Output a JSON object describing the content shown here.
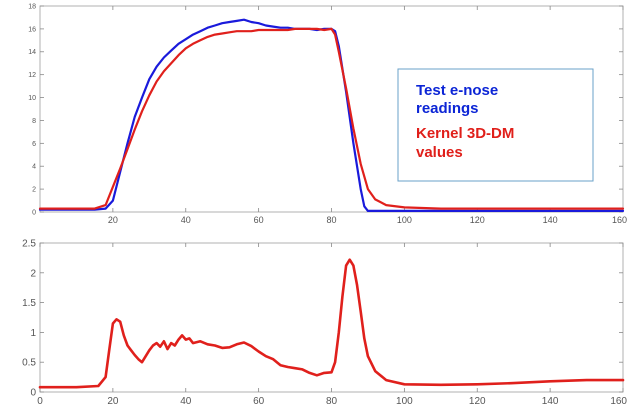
{
  "chart_data": [
    {
      "type": "line",
      "title": "",
      "xlabel": "",
      "ylabel": "",
      "xlim": [
        0,
        160
      ],
      "ylim": [
        0,
        18
      ],
      "xticks": [
        20,
        40,
        60,
        80,
        100,
        120,
        140,
        160
      ],
      "xtick_labels": [
        "20",
        "40",
        "60",
        "80",
        "100",
        "120",
        "140",
        "160"
      ],
      "yticks": [
        0,
        2,
        4,
        6,
        8,
        10,
        12,
        14,
        16,
        18
      ],
      "ytick_labels": [
        "0",
        "2",
        "4",
        "6",
        "8",
        "10",
        "12",
        "14",
        "16",
        "18"
      ],
      "grid": false,
      "legend": {
        "placement": "inside-right",
        "entries": [
          "Test e-nose\nreadings",
          "Kernel 3D-DM\nvalues"
        ]
      },
      "series": [
        {
          "name": "Test e-nose readings",
          "color": "#1a1adb",
          "x": [
            0,
            15,
            18,
            20,
            22,
            24,
            26,
            28,
            30,
            32,
            34,
            36,
            38,
            40,
            42,
            44,
            46,
            48,
            50,
            52,
            54,
            56,
            58,
            60,
            62,
            64,
            66,
            68,
            70,
            72,
            74,
            76,
            78,
            80,
            81,
            82,
            84,
            86,
            88,
            89,
            90,
            95,
            100,
            120,
            140,
            160
          ],
          "y": [
            0.2,
            0.2,
            0.3,
            1.0,
            3.5,
            6.0,
            8.3,
            10.0,
            11.6,
            12.7,
            13.5,
            14.1,
            14.7,
            15.1,
            15.5,
            15.8,
            16.1,
            16.3,
            16.5,
            16.6,
            16.7,
            16.8,
            16.6,
            16.5,
            16.3,
            16.2,
            16.1,
            16.1,
            16.0,
            16.0,
            16.0,
            15.9,
            16.0,
            16.0,
            15.8,
            14.5,
            10.5,
            6.0,
            2.0,
            0.5,
            0.1,
            0.1,
            0.1,
            0.1,
            0.1,
            0.1
          ]
        },
        {
          "name": "Kernel 3D-DM values",
          "color": "#e0201c",
          "x": [
            0,
            15,
            18,
            20,
            22,
            24,
            26,
            28,
            30,
            32,
            34,
            36,
            38,
            40,
            42,
            44,
            46,
            48,
            50,
            52,
            54,
            56,
            58,
            60,
            62,
            64,
            66,
            68,
            70,
            72,
            74,
            76,
            78,
            80,
            81,
            82,
            84,
            86,
            88,
            90,
            92,
            95,
            100,
            110,
            120,
            140,
            160
          ],
          "y": [
            0.3,
            0.3,
            0.6,
            2.2,
            3.8,
            5.5,
            7.2,
            8.8,
            10.2,
            11.4,
            12.3,
            13.0,
            13.7,
            14.3,
            14.7,
            15.0,
            15.3,
            15.5,
            15.6,
            15.7,
            15.8,
            15.8,
            15.8,
            15.9,
            15.9,
            15.9,
            15.9,
            15.9,
            16.0,
            16.0,
            16.0,
            16.0,
            15.9,
            16.0,
            15.5,
            14.0,
            10.8,
            7.3,
            4.2,
            2.0,
            1.1,
            0.6,
            0.4,
            0.3,
            0.3,
            0.3,
            0.3
          ]
        }
      ]
    },
    {
      "type": "line",
      "title": "",
      "xlabel": "",
      "ylabel": "",
      "xlim": [
        0,
        160
      ],
      "ylim": [
        0,
        2.5
      ],
      "xticks": [
        0,
        20,
        40,
        60,
        80,
        100,
        120,
        140,
        160
      ],
      "xtick_labels": [
        "0",
        "20",
        "40",
        "60",
        "80",
        "100",
        "120",
        "140",
        "160"
      ],
      "yticks": [
        0,
        0.5,
        1,
        1.5,
        2,
        2.5
      ],
      "ytick_labels": [
        "0",
        "0.5",
        "1",
        "1.5",
        "2",
        "2.5"
      ],
      "grid": false,
      "series": [
        {
          "color": "#e0201c",
          "x": [
            0,
            10,
            16,
            18,
            19,
            20,
            21,
            22,
            23,
            24,
            25,
            26,
            27,
            28,
            29,
            30,
            31,
            32,
            33,
            34,
            35,
            36,
            37,
            38,
            39,
            40,
            41,
            42,
            44,
            46,
            48,
            50,
            52,
            54,
            56,
            58,
            60,
            62,
            64,
            66,
            68,
            70,
            72,
            74,
            76,
            78,
            80,
            81,
            82,
            83,
            84,
            85,
            86,
            87,
            88,
            89,
            90,
            92,
            95,
            100,
            110,
            120,
            130,
            140,
            150,
            160
          ],
          "y": [
            0.08,
            0.08,
            0.1,
            0.25,
            0.7,
            1.15,
            1.22,
            1.18,
            0.95,
            0.78,
            0.7,
            0.62,
            0.55,
            0.5,
            0.6,
            0.7,
            0.78,
            0.82,
            0.76,
            0.85,
            0.72,
            0.82,
            0.78,
            0.88,
            0.95,
            0.88,
            0.9,
            0.82,
            0.85,
            0.8,
            0.78,
            0.74,
            0.75,
            0.8,
            0.83,
            0.77,
            0.68,
            0.6,
            0.55,
            0.45,
            0.42,
            0.4,
            0.38,
            0.32,
            0.28,
            0.32,
            0.33,
            0.5,
            1.0,
            1.6,
            2.12,
            2.22,
            2.12,
            1.8,
            1.35,
            0.9,
            0.6,
            0.35,
            0.2,
            0.13,
            0.12,
            0.13,
            0.15,
            0.18,
            0.2,
            0.2
          ]
        }
      ]
    }
  ]
}
